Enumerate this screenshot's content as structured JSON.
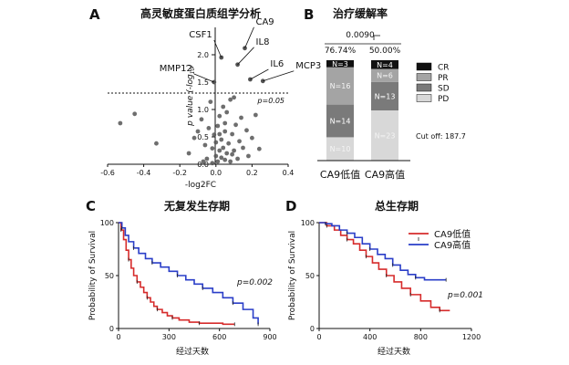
{
  "chart_data": [
    {
      "panel": "A",
      "type": "scatter",
      "title": "高灵敏度蛋白质组学分析",
      "xlabel": "-log2FC",
      "ylabel": "p value (-log10)",
      "xlim": [
        -0.6,
        0.4
      ],
      "ylim": [
        0,
        2.5
      ],
      "xticks": [
        "-0.6",
        "-0.4",
        "-0.2",
        "0.0",
        "0.2",
        "0.4"
      ],
      "yticks": [
        "0.0",
        "0.5",
        "1.0",
        "1.5",
        "2.0"
      ],
      "threshold": {
        "y": 1.3,
        "label": "p=0.05"
      },
      "labeled_points": [
        {
          "name": "CSF1",
          "x": 0.03,
          "y": 1.95
        },
        {
          "name": "CA9",
          "x": 0.16,
          "y": 2.12
        },
        {
          "name": "IL8",
          "x": 0.12,
          "y": 1.82
        },
        {
          "name": "IL6",
          "x": 0.19,
          "y": 1.55
        },
        {
          "name": "MCP3",
          "x": 0.26,
          "y": 1.52
        },
        {
          "name": "MMP12",
          "x": -0.01,
          "y": 1.5
        }
      ],
      "points": [
        [
          -0.53,
          0.75
        ],
        [
          -0.45,
          0.92
        ],
        [
          -0.33,
          0.38
        ],
        [
          -0.15,
          0.2
        ],
        [
          -0.12,
          0.48
        ],
        [
          -0.1,
          0.6
        ],
        [
          -0.08,
          0.82
        ],
        [
          -0.06,
          0.35
        ],
        [
          -0.05,
          0.1
        ],
        [
          -0.04,
          0.66
        ],
        [
          -0.03,
          1.14
        ],
        [
          -0.02,
          0.02
        ],
        [
          -0.02,
          0.29
        ],
        [
          -0.01,
          0.54
        ],
        [
          0.0,
          0.15
        ],
        [
          0.0,
          0.4
        ],
        [
          0.01,
          0.05
        ],
        [
          0.01,
          0.7
        ],
        [
          0.02,
          0.25
        ],
        [
          0.02,
          0.88
        ],
        [
          0.03,
          0.12
        ],
        [
          0.03,
          0.45
        ],
        [
          0.04,
          1.05
        ],
        [
          0.04,
          0.3
        ],
        [
          0.05,
          0.6
        ],
        [
          0.05,
          0.08
        ],
        [
          0.06,
          0.2
        ],
        [
          0.06,
          0.95
        ],
        [
          0.07,
          0.38
        ],
        [
          0.08,
          1.18
        ],
        [
          0.08,
          0.05
        ],
        [
          0.09,
          0.55
        ],
        [
          0.1,
          0.25
        ],
        [
          0.1,
          1.22
        ],
        [
          0.11,
          0.72
        ],
        [
          0.12,
          0.1
        ],
        [
          0.13,
          0.42
        ],
        [
          0.14,
          0.85
        ],
        [
          0.15,
          0.3
        ],
        [
          0.17,
          0.62
        ],
        [
          0.18,
          0.15
        ],
        [
          0.2,
          0.48
        ],
        [
          0.22,
          0.9
        ],
        [
          0.24,
          0.28
        ],
        [
          -0.07,
          0.05
        ],
        [
          0.02,
          0.55
        ],
        [
          0.05,
          0.75
        ],
        [
          0.09,
          0.18
        ]
      ]
    },
    {
      "panel": "B",
      "type": "bar",
      "title": "治疗缓解率",
      "categories": [
        "CA9低值",
        "CA9高值"
      ],
      "percent_labels": [
        "76.74%",
        "50.00%"
      ],
      "p_value": "0.0090",
      "cutoff_label": "Cut off: 187.7",
      "legend": [
        "CR",
        "PR",
        "SD",
        "PD"
      ],
      "series": [
        {
          "name": "PD",
          "values": [
            10,
            23
          ],
          "labels": [
            "N=10",
            "N=23"
          ],
          "color": "#d8d8d8"
        },
        {
          "name": "SD",
          "values": [
            14,
            13
          ],
          "labels": [
            "N=14",
            "N=13"
          ],
          "color": "#7a7a7a"
        },
        {
          "name": "PR",
          "values": [
            16,
            6
          ],
          "labels": [
            "N=16",
            "N=6"
          ],
          "color": "#a4a4a4"
        },
        {
          "name": "CR",
          "values": [
            3,
            4
          ],
          "labels": [
            "N=3",
            "N=4"
          ],
          "color": "#111111"
        }
      ]
    },
    {
      "panel": "C",
      "type": "line",
      "title": "无复发生存期",
      "xlabel": "经过天数",
      "ylabel": "Probability of Survival",
      "xlim": [
        0,
        900
      ],
      "ylim": [
        0,
        100
      ],
      "xticks": [
        "0",
        "300",
        "600",
        "900"
      ],
      "yticks": [
        "0",
        "50",
        "100"
      ],
      "p_label": "p=0.002",
      "series": [
        {
          "name": "CA9低值",
          "color": "#d62b2b",
          "points": [
            [
              0,
              100
            ],
            [
              15,
              93
            ],
            [
              30,
              84
            ],
            [
              45,
              74
            ],
            [
              60,
              65
            ],
            [
              75,
              57
            ],
            [
              90,
              50
            ],
            [
              110,
              44
            ],
            [
              130,
              39
            ],
            [
              150,
              34
            ],
            [
              170,
              29
            ],
            [
              190,
              25
            ],
            [
              210,
              21
            ],
            [
              230,
              18
            ],
            [
              260,
              15
            ],
            [
              290,
              12
            ],
            [
              320,
              10
            ],
            [
              360,
              8
            ],
            [
              420,
              6
            ],
            [
              480,
              5
            ],
            [
              560,
              5
            ],
            [
              620,
              4
            ],
            [
              690,
              4
            ]
          ]
        },
        {
          "name": "CA9高值",
          "color": "#2a3ec8",
          "points": [
            [
              0,
              100
            ],
            [
              20,
              95
            ],
            [
              40,
              88
            ],
            [
              60,
              82
            ],
            [
              90,
              76
            ],
            [
              120,
              71
            ],
            [
              160,
              66
            ],
            [
              200,
              62
            ],
            [
              250,
              58
            ],
            [
              300,
              54
            ],
            [
              350,
              50
            ],
            [
              400,
              46
            ],
            [
              450,
              42
            ],
            [
              500,
              38
            ],
            [
              560,
              34
            ],
            [
              620,
              29
            ],
            [
              680,
              24
            ],
            [
              740,
              18
            ],
            [
              800,
              10
            ],
            [
              830,
              4
            ]
          ]
        }
      ]
    },
    {
      "panel": "D",
      "type": "line",
      "title": "总生存期",
      "xlabel": "经过天数",
      "ylabel": "Probability of Survival",
      "xlim": [
        0,
        1200
      ],
      "ylim": [
        0,
        100
      ],
      "xticks": [
        "0",
        "400",
        "800",
        "1200"
      ],
      "yticks": [
        "0",
        "50",
        "100"
      ],
      "p_label": "p=0.001",
      "legend": [
        "CA9低值",
        "CA9高值"
      ],
      "series": [
        {
          "name": "CA9低值",
          "color": "#d62b2b",
          "points": [
            [
              0,
              100
            ],
            [
              60,
              97
            ],
            [
              120,
              93
            ],
            [
              170,
              88
            ],
            [
              220,
              84
            ],
            [
              270,
              80
            ],
            [
              320,
              74
            ],
            [
              370,
              68
            ],
            [
              420,
              62
            ],
            [
              470,
              56
            ],
            [
              530,
              50
            ],
            [
              590,
              44
            ],
            [
              650,
              38
            ],
            [
              720,
              32
            ],
            [
              800,
              26
            ],
            [
              880,
              20
            ],
            [
              950,
              17
            ],
            [
              1030,
              17
            ]
          ]
        },
        {
          "name": "CA9高值",
          "color": "#2a3ec8",
          "points": [
            [
              0,
              100
            ],
            [
              50,
              99
            ],
            [
              100,
              97
            ],
            [
              160,
              93
            ],
            [
              220,
              90
            ],
            [
              280,
              86
            ],
            [
              340,
              80
            ],
            [
              400,
              75
            ],
            [
              460,
              70
            ],
            [
              520,
              66
            ],
            [
              580,
              60
            ],
            [
              640,
              55
            ],
            [
              700,
              51
            ],
            [
              760,
              48
            ],
            [
              830,
              46
            ],
            [
              900,
              46
            ],
            [
              1000,
              46
            ]
          ]
        }
      ]
    }
  ]
}
